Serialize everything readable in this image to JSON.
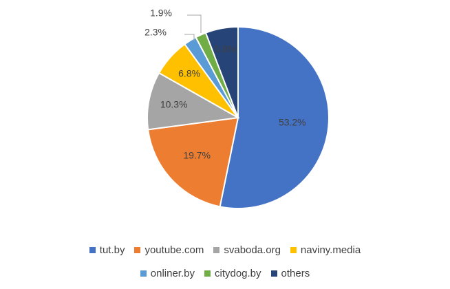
{
  "chart_data": {
    "type": "pie",
    "title": "",
    "unit": "%",
    "categories": [
      "tut.by",
      "youtube.com",
      "svaboda.org",
      "naviny.media",
      "onliner.by",
      "citydog.by",
      "others"
    ],
    "values": [
      53.2,
      19.7,
      10.3,
      6.8,
      2.3,
      1.9,
      5.8
    ],
    "labels": [
      "53.2%",
      "19.7%",
      "10.3%",
      "6.8%",
      "2.3%",
      "1.9%",
      "5.8%"
    ],
    "colors": [
      "#4472c4",
      "#ed7d31",
      "#a5a5a5",
      "#ffc000",
      "#5b9bd5",
      "#70ad47",
      "#264478"
    ],
    "start": "12 o'clock",
    "direction": "clockwise",
    "legend_position": "bottom"
  }
}
